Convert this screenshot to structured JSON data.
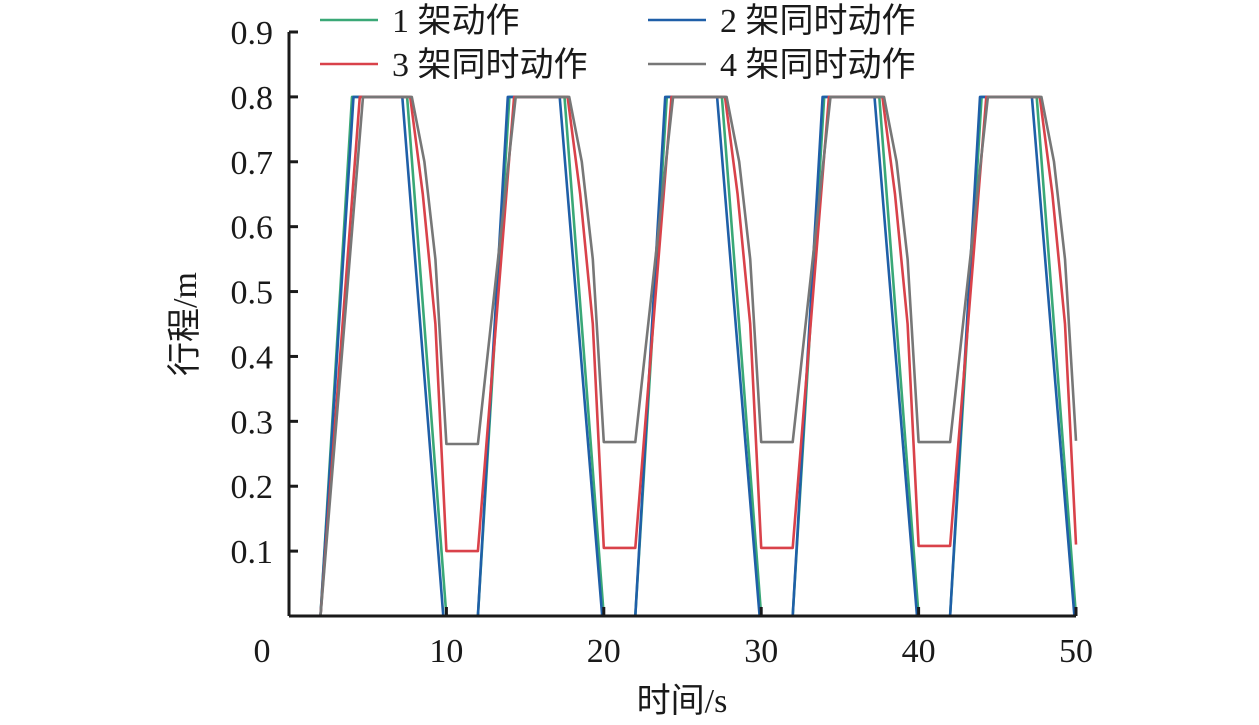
{
  "chart_data": {
    "type": "line",
    "title": "",
    "xlabel": "时间/s",
    "ylabel": "行程/m",
    "xlim": [
      0,
      50
    ],
    "ylim": [
      0,
      0.9
    ],
    "x_ticks": [
      0,
      10,
      20,
      30,
      40,
      50
    ],
    "y_ticks": [
      0.1,
      0.2,
      0.3,
      0.4,
      0.5,
      0.6,
      0.7,
      0.8,
      0.9
    ],
    "x_tick_labels": [
      "0",
      "10",
      "20",
      "30",
      "40",
      "50"
    ],
    "y_tick_labels": [
      "0.1",
      "0.2",
      "0.3",
      "0.4",
      "0.5",
      "0.6",
      "0.7",
      "0.8",
      "0.9"
    ],
    "grid": false,
    "legend_position": "top",
    "series": [
      {
        "name": "1 架动作",
        "color": "#3aa877",
        "x": [
          2,
          4,
          7.5,
          10,
          12,
          14,
          17.5,
          20,
          22,
          24,
          27.5,
          30,
          32,
          34,
          37.5,
          40,
          42,
          44,
          47.5,
          50
        ],
        "y": [
          0,
          0.8,
          0.8,
          0,
          0,
          0.8,
          0.8,
          0,
          0,
          0.8,
          0.8,
          0,
          0,
          0.8,
          0.8,
          0,
          0,
          0.8,
          0.8,
          0
        ]
      },
      {
        "name": "2 架同时动作",
        "color": "#1f5fa8",
        "x": [
          2,
          4.1,
          7.2,
          9.8,
          12,
          13.9,
          17.2,
          19.9,
          22,
          23.9,
          27.2,
          29.9,
          32,
          33.9,
          37.2,
          39.9,
          42,
          43.9,
          47.2,
          49.9
        ],
        "y": [
          0,
          0.8,
          0.8,
          0,
          0,
          0.8,
          0.8,
          0,
          0,
          0.8,
          0.8,
          0,
          0,
          0.8,
          0.8,
          0,
          0,
          0.8,
          0.8,
          0
        ]
      },
      {
        "name": "3 架同时动作",
        "color": "#d9424a",
        "x": [
          2,
          4.5,
          7.7,
          8.5,
          9.3,
          10,
          12,
          14.3,
          17.7,
          18.5,
          19.3,
          20,
          22,
          24.3,
          27.7,
          28.5,
          29.3,
          30,
          32,
          34.3,
          37.7,
          38.5,
          39.3,
          40,
          42,
          44.3,
          47.7,
          48.5,
          49.3,
          50
        ],
        "y": [
          0,
          0.8,
          0.8,
          0.65,
          0.45,
          0.1,
          0.1,
          0.8,
          0.8,
          0.65,
          0.45,
          0.105,
          0.105,
          0.8,
          0.8,
          0.65,
          0.45,
          0.105,
          0.105,
          0.8,
          0.8,
          0.65,
          0.45,
          0.108,
          0.108,
          0.8,
          0.8,
          0.65,
          0.45,
          0.11
        ]
      },
      {
        "name": "4 架同时动作",
        "color": "#777777",
        "x": [
          2,
          4.7,
          7.8,
          8.6,
          9.3,
          10,
          12,
          14.4,
          17.8,
          18.6,
          19.3,
          20,
          22,
          24.4,
          27.8,
          28.6,
          29.3,
          30,
          32,
          34.4,
          37.8,
          38.6,
          39.3,
          40,
          42,
          44.4,
          47.8,
          48.6,
          49.3,
          50
        ],
        "y": [
          0,
          0.8,
          0.8,
          0.7,
          0.55,
          0.265,
          0.265,
          0.8,
          0.8,
          0.7,
          0.55,
          0.268,
          0.268,
          0.8,
          0.8,
          0.7,
          0.55,
          0.268,
          0.268,
          0.8,
          0.8,
          0.7,
          0.55,
          0.268,
          0.268,
          0.8,
          0.8,
          0.7,
          0.55,
          0.27
        ]
      }
    ]
  }
}
